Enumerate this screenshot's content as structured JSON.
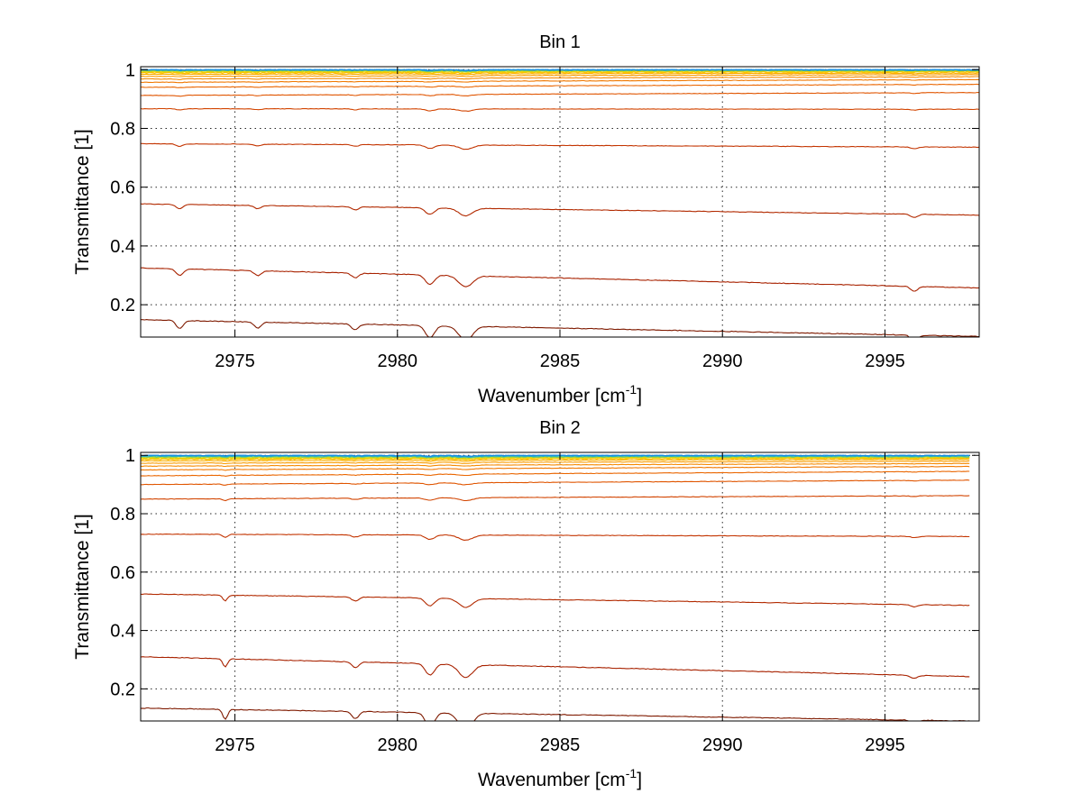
{
  "chart_data": [
    {
      "type": "line",
      "title": "Bin 1",
      "xlabel": "Wavenumber [cm",
      "xlabel_sup": "-1",
      "xlabel_end": "]",
      "ylabel": "Transmittance [1]",
      "xlim": [
        2972.1,
        2997.9
      ],
      "ylim": [
        0.09,
        1.01
      ],
      "xticks": [
        2975,
        2980,
        2985,
        2990,
        2995
      ],
      "xtick_labels": [
        "2975",
        "2980",
        "2985",
        "2990",
        "2995"
      ],
      "yticks": [
        0.2,
        0.4,
        0.6,
        0.8,
        1.0
      ],
      "ytick_labels": [
        "0.2",
        "0.4",
        "0.6",
        "0.8",
        "1"
      ],
      "grid": true,
      "x_end": 2997.9,
      "dips": [
        {
          "x": 2973.3,
          "depth": 0.02,
          "width": 0.15
        },
        {
          "x": 2975.7,
          "depth": 0.015,
          "width": 0.15
        },
        {
          "x": 2978.7,
          "depth": 0.015,
          "width": 0.15
        },
        {
          "x": 2981.0,
          "depth": 0.03,
          "width": 0.2
        },
        {
          "x": 2982.1,
          "depth": 0.035,
          "width": 0.3
        },
        {
          "x": 2995.9,
          "depth": 0.015,
          "width": 0.15
        }
      ],
      "series": [
        {
          "start": 0.149,
          "end": 0.092,
          "color": "#7f1a00"
        },
        {
          "start": 0.325,
          "end": 0.257,
          "color": "#a82200"
        },
        {
          "start": 0.543,
          "end": 0.505,
          "color": "#b22a00"
        },
        {
          "start": 0.748,
          "end": 0.736,
          "color": "#c33400"
        },
        {
          "start": 0.867,
          "end": 0.865,
          "color": "#d24400"
        },
        {
          "start": 0.912,
          "end": 0.922,
          "color": "#e05500"
        },
        {
          "start": 0.94,
          "end": 0.95,
          "color": "#ea6600"
        },
        {
          "start": 0.957,
          "end": 0.966,
          "color": "#f07800"
        },
        {
          "start": 0.968,
          "end": 0.976,
          "color": "#f58a00"
        },
        {
          "start": 0.977,
          "end": 0.983,
          "color": "#f99c00"
        },
        {
          "start": 0.984,
          "end": 0.988,
          "color": "#fbae00"
        },
        {
          "start": 0.989,
          "end": 0.992,
          "color": "#fcc000"
        },
        {
          "start": 0.993,
          "end": 0.995,
          "color": "#e8d400"
        },
        {
          "start": 0.996,
          "end": 0.997,
          "color": "#b4d830"
        },
        {
          "start": 0.998,
          "end": 0.998,
          "color": "#60c880"
        },
        {
          "start": 0.999,
          "end": 0.999,
          "color": "#20b0c8"
        },
        {
          "start": 1.0,
          "end": 1.0,
          "color": "#1a8ee0"
        }
      ]
    },
    {
      "type": "line",
      "title": "Bin 2",
      "xlabel": "Wavenumber [cm",
      "xlabel_sup": "-1",
      "xlabel_end": "]",
      "ylabel": "Transmittance [1]",
      "xlim": [
        2972.1,
        2997.9
      ],
      "ylim": [
        0.09,
        1.01
      ],
      "xticks": [
        2975,
        2980,
        2985,
        2990,
        2995
      ],
      "xtick_labels": [
        "2975",
        "2980",
        "2985",
        "2990",
        "2995"
      ],
      "yticks": [
        0.2,
        0.4,
        0.6,
        0.8,
        1.0
      ],
      "ytick_labels": [
        "0.2",
        "0.4",
        "0.6",
        "0.8",
        "1"
      ],
      "grid": true,
      "x_end": 2997.6,
      "dips": [
        {
          "x": 2974.7,
          "depth": 0.025,
          "width": 0.1
        },
        {
          "x": 2978.7,
          "depth": 0.018,
          "width": 0.15
        },
        {
          "x": 2981.0,
          "depth": 0.035,
          "width": 0.2
        },
        {
          "x": 2982.1,
          "depth": 0.04,
          "width": 0.3
        },
        {
          "x": 2995.9,
          "depth": 0.01,
          "width": 0.15
        }
      ],
      "series": [
        {
          "start": 0.134,
          "end": 0.09,
          "color": "#7f1a00"
        },
        {
          "start": 0.31,
          "end": 0.242,
          "color": "#a82200"
        },
        {
          "start": 0.525,
          "end": 0.486,
          "color": "#b22a00"
        },
        {
          "start": 0.73,
          "end": 0.722,
          "color": "#c33400"
        },
        {
          "start": 0.85,
          "end": 0.862,
          "color": "#d24400"
        },
        {
          "start": 0.9,
          "end": 0.915,
          "color": "#e05500"
        },
        {
          "start": 0.93,
          "end": 0.945,
          "color": "#ea6600"
        },
        {
          "start": 0.95,
          "end": 0.962,
          "color": "#f07800"
        },
        {
          "start": 0.963,
          "end": 0.972,
          "color": "#f58a00"
        },
        {
          "start": 0.973,
          "end": 0.98,
          "color": "#f99c00"
        },
        {
          "start": 0.981,
          "end": 0.986,
          "color": "#fbae00"
        },
        {
          "start": 0.987,
          "end": 0.99,
          "color": "#fcc000"
        },
        {
          "start": 0.991,
          "end": 0.993,
          "color": "#e8d400"
        },
        {
          "start": 0.994,
          "end": 0.995,
          "color": "#b4d830"
        },
        {
          "start": 0.996,
          "end": 0.996,
          "color": "#60c880"
        },
        {
          "start": 0.998,
          "end": 0.998,
          "color": "#20b0c8"
        },
        {
          "start": 1.0,
          "end": 1.0,
          "color": "#1a8ee0"
        }
      ]
    }
  ]
}
